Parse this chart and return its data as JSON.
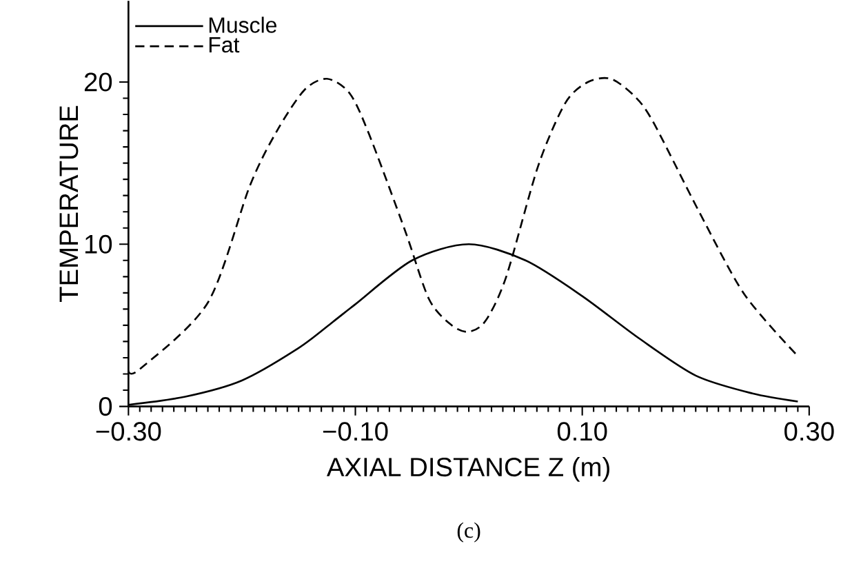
{
  "chart_data": {
    "type": "line",
    "xlabel": "AXIAL DISTANCE Z (m)",
    "ylabel": "TEMPERATURE",
    "annotations": [
      "(c)"
    ],
    "xlim": [
      -0.3,
      0.3
    ],
    "ylim": [
      0,
      25
    ],
    "xticks": [
      {
        "value": -0.3,
        "label": "−0.30"
      },
      {
        "value": -0.1,
        "label": "−0.10"
      },
      {
        "value": 0.1,
        "label": "0.10"
      },
      {
        "value": 0.3,
        "label": "0.30"
      }
    ],
    "yticks": [
      0,
      10,
      20
    ],
    "legend": "top left",
    "grid": false,
    "marker": "none",
    "series": [
      {
        "name": "Muscle",
        "color": "#000000",
        "line_style": "solid",
        "x": [
          -0.3,
          -0.25,
          -0.2,
          -0.15,
          -0.12,
          -0.1,
          -0.05,
          0.0,
          0.05,
          0.1,
          0.15,
          0.2,
          0.25,
          0.29
        ],
        "values": [
          0.1,
          0.6,
          1.6,
          3.6,
          5.2,
          6.3,
          9.0,
          10.0,
          9.0,
          6.8,
          4.2,
          1.9,
          0.8,
          0.3
        ]
      },
      {
        "name": "Fat",
        "color": "#000000",
        "line_style": "dashed",
        "x": [
          -0.3,
          -0.29,
          -0.23,
          -0.193,
          -0.169,
          -0.145,
          -0.125,
          -0.105,
          -0.088,
          -0.056,
          -0.035,
          -0.015,
          0.0,
          0.015,
          0.033,
          0.061,
          0.085,
          0.105,
          0.125,
          0.145,
          0.162,
          0.203,
          0.243,
          0.29
        ],
        "values": [
          2.2,
          2.3,
          6.4,
          13.6,
          17.0,
          19.5,
          20.2,
          19.3,
          16.8,
          10.8,
          6.6,
          5.0,
          4.6,
          5.3,
          8.0,
          14.8,
          18.7,
          20.0,
          20.2,
          19.2,
          17.6,
          12.0,
          6.9,
          3.1
        ]
      }
    ]
  }
}
